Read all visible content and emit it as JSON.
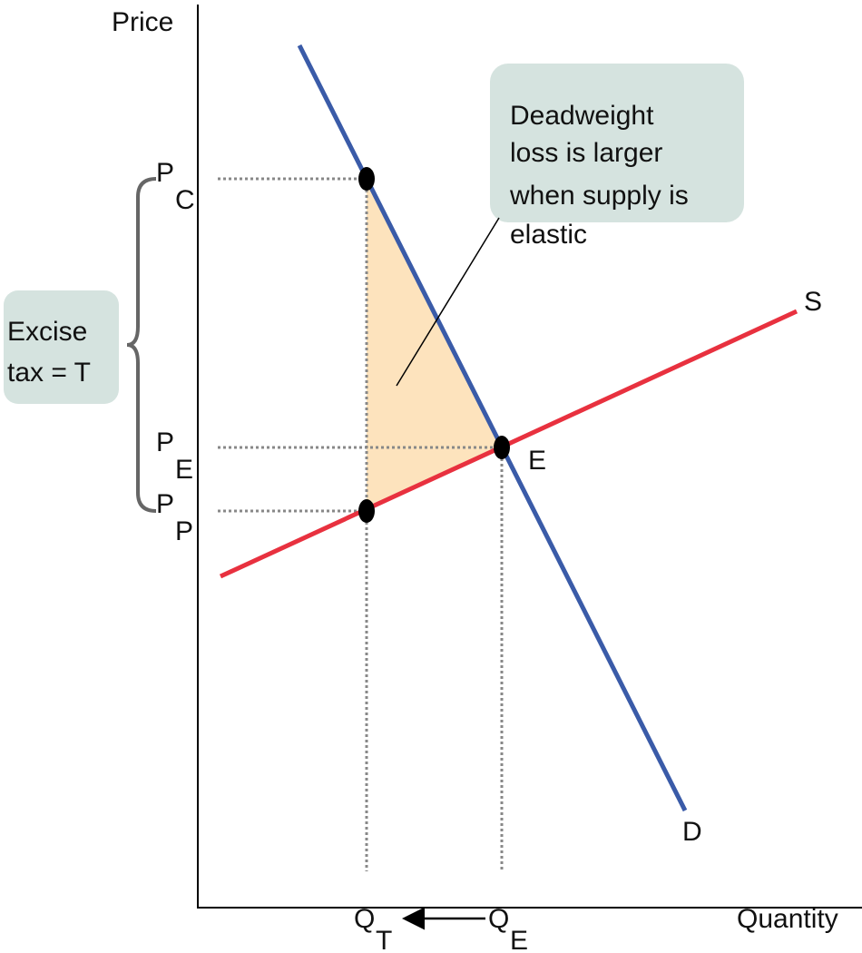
{
  "axes": {
    "y_label": "Price",
    "x_label": "Quantity"
  },
  "price_labels": [
    {
      "main": "P",
      "sub": "C"
    },
    {
      "main": "P",
      "sub": "E"
    },
    {
      "main": "P",
      "sub": "P"
    }
  ],
  "quantity_labels": [
    {
      "main": "Q",
      "sub": "T"
    },
    {
      "main": "Q",
      "sub": "E"
    }
  ],
  "curves": {
    "supply": "S",
    "demand": "D"
  },
  "equilibrium": "E",
  "callout": {
    "lines": [
      "Deadweight",
      "loss is larger",
      "when supply is",
      "elastic"
    ]
  },
  "tax_box": {
    "lines": [
      "Excise",
      "tax = T"
    ]
  }
}
